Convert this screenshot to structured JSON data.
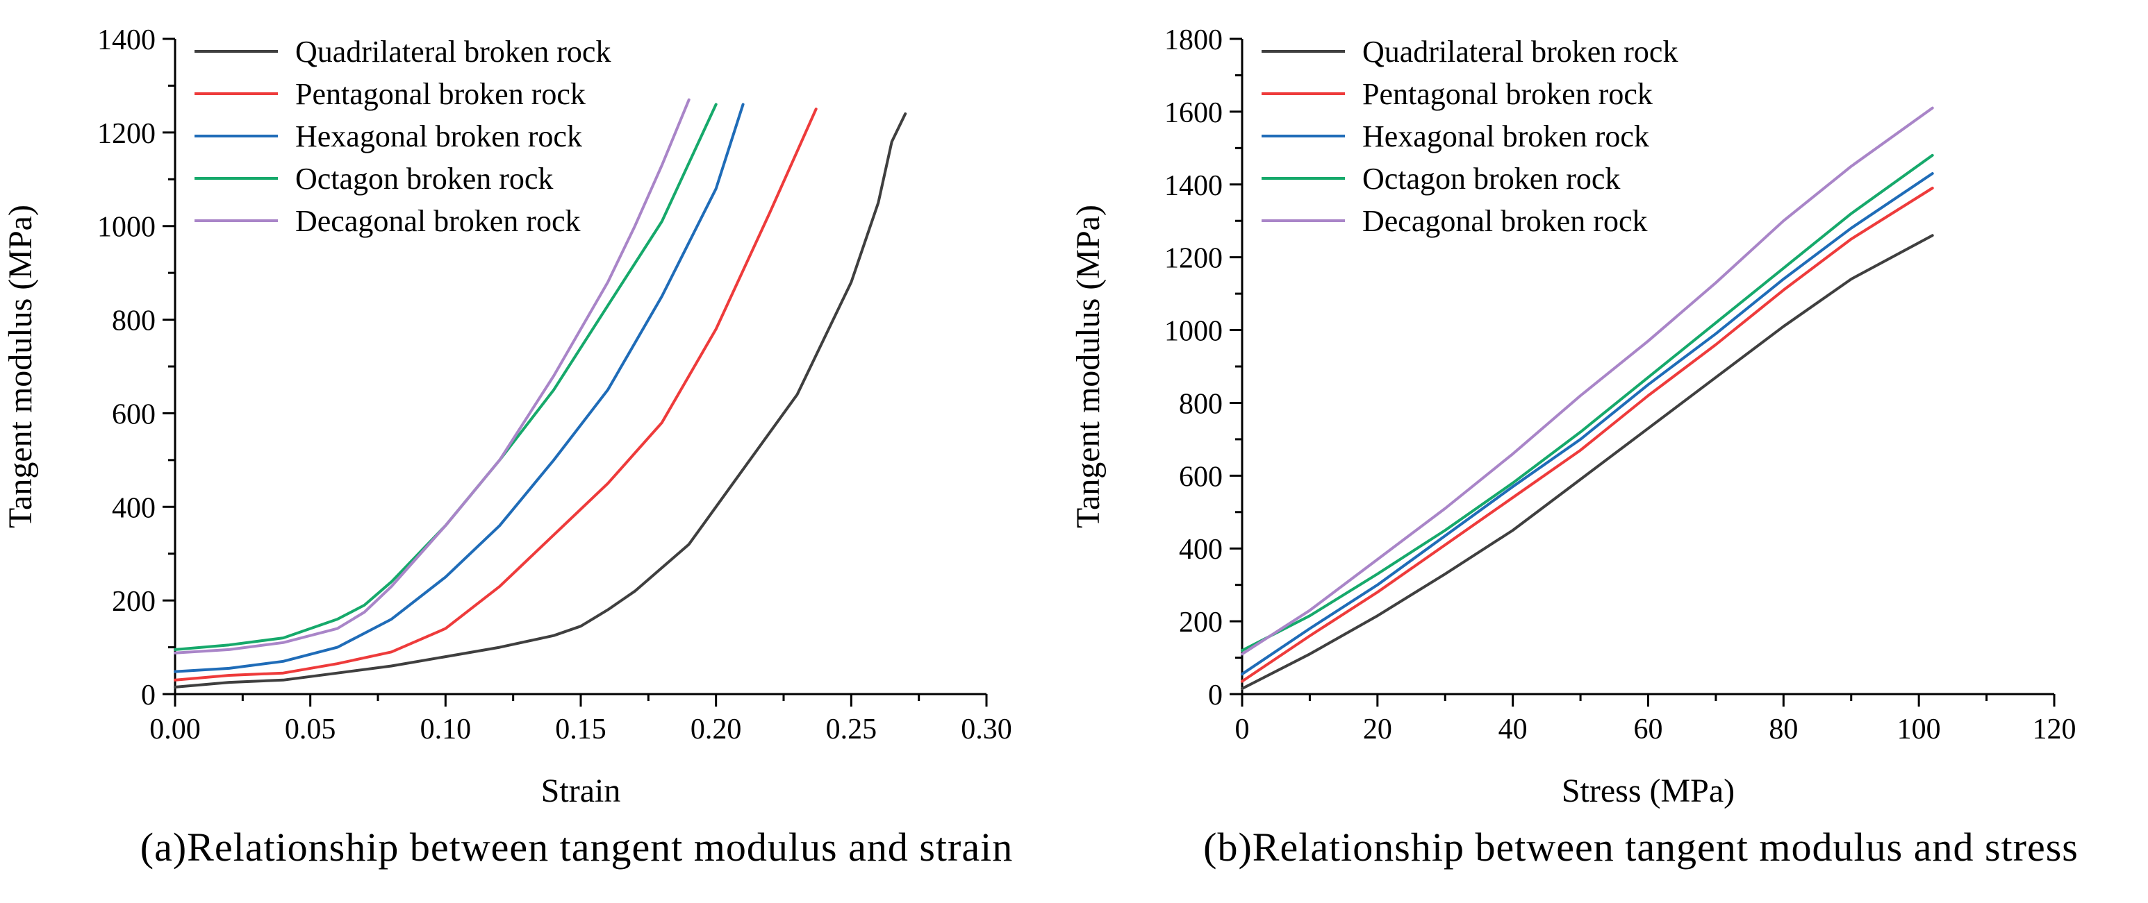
{
  "colors": {
    "quadrilateral": "#3f3f3f",
    "pentagonal": "#ee3b3b",
    "hexagonal": "#1f6cb8",
    "octagon": "#16a96b",
    "decagonal": "#a985c8"
  },
  "chart_data": [
    {
      "type": "line",
      "caption": "(a)Relationship between tangent modulus and strain",
      "xlabel": "Strain",
      "ylabel": "Tangent modulus (MPa)",
      "xlim": [
        0,
        0.3
      ],
      "ylim": [
        0,
        1400
      ],
      "xticks": [
        0,
        0.05,
        0.1,
        0.15,
        0.2,
        0.25,
        0.3
      ],
      "xtick_labels": [
        "0.00",
        "0.05",
        "0.10",
        "0.15",
        "0.20",
        "0.25",
        "0.30"
      ],
      "yticks": [
        0,
        200,
        400,
        600,
        800,
        1000,
        1200,
        1400
      ],
      "ytick_labels": [
        "0",
        "200",
        "400",
        "600",
        "800",
        "1000",
        "1200",
        "1400"
      ],
      "legend_position": "top-left",
      "series": [
        {
          "name": "Quadrilateral broken rock",
          "color_key": "quadrilateral",
          "x": [
            0,
            0.02,
            0.04,
            0.06,
            0.08,
            0.1,
            0.12,
            0.14,
            0.15,
            0.16,
            0.17,
            0.19,
            0.21,
            0.23,
            0.25,
            0.26,
            0.265,
            0.27
          ],
          "y": [
            15,
            25,
            30,
            45,
            60,
            80,
            100,
            125,
            145,
            180,
            220,
            320,
            480,
            640,
            880,
            1050,
            1180,
            1240
          ]
        },
        {
          "name": "Pentagonal broken rock",
          "color_key": "pentagonal",
          "x": [
            0,
            0.02,
            0.04,
            0.06,
            0.08,
            0.1,
            0.12,
            0.14,
            0.16,
            0.18,
            0.2,
            0.22,
            0.237
          ],
          "y": [
            30,
            40,
            45,
            65,
            90,
            140,
            230,
            340,
            450,
            580,
            780,
            1030,
            1250
          ]
        },
        {
          "name": "Hexagonal broken rock",
          "color_key": "hexagonal",
          "x": [
            0,
            0.02,
            0.04,
            0.06,
            0.08,
            0.1,
            0.12,
            0.14,
            0.16,
            0.18,
            0.2,
            0.21
          ],
          "y": [
            48,
            55,
            70,
            100,
            160,
            250,
            360,
            500,
            650,
            850,
            1080,
            1260
          ]
        },
        {
          "name": "Octagon broken rock",
          "color_key": "octagon",
          "x": [
            0,
            0.02,
            0.04,
            0.06,
            0.07,
            0.08,
            0.1,
            0.12,
            0.14,
            0.16,
            0.18,
            0.2
          ],
          "y": [
            95,
            105,
            120,
            160,
            190,
            240,
            360,
            500,
            650,
            830,
            1010,
            1260
          ]
        },
        {
          "name": "Decagonal broken rock",
          "color_key": "decagonal",
          "x": [
            0,
            0.02,
            0.04,
            0.06,
            0.07,
            0.08,
            0.1,
            0.12,
            0.14,
            0.16,
            0.17,
            0.18,
            0.19
          ],
          "y": [
            88,
            95,
            110,
            140,
            175,
            230,
            360,
            500,
            680,
            880,
            1000,
            1130,
            1270
          ]
        }
      ]
    },
    {
      "type": "line",
      "caption": "(b)Relationship between tangent modulus and stress",
      "xlabel": "Stress (MPa)",
      "ylabel": "Tangent modulus (MPa)",
      "xlim": [
        0,
        120
      ],
      "ylim": [
        0,
        1800
      ],
      "xticks": [
        0,
        20,
        40,
        60,
        80,
        100,
        120
      ],
      "xtick_labels": [
        "0",
        "20",
        "40",
        "60",
        "80",
        "100",
        "120"
      ],
      "yticks": [
        0,
        200,
        400,
        600,
        800,
        1000,
        1200,
        1400,
        1600,
        1800
      ],
      "ytick_labels": [
        "0",
        "200",
        "400",
        "600",
        "800",
        "1000",
        "1200",
        "1400",
        "1600",
        "1800"
      ],
      "legend_position": "top-left",
      "series": [
        {
          "name": "Quadrilateral broken rock",
          "color_key": "quadrilateral",
          "x": [
            0,
            10,
            20,
            30,
            40,
            50,
            60,
            70,
            80,
            90,
            102
          ],
          "y": [
            15,
            110,
            215,
            330,
            450,
            590,
            730,
            870,
            1010,
            1140,
            1260
          ]
        },
        {
          "name": "Pentagonal broken rock",
          "color_key": "pentagonal",
          "x": [
            0,
            10,
            20,
            30,
            40,
            50,
            60,
            70,
            80,
            90,
            102
          ],
          "y": [
            35,
            160,
            280,
            410,
            540,
            670,
            820,
            960,
            1110,
            1250,
            1390
          ]
        },
        {
          "name": "Hexagonal broken rock",
          "color_key": "hexagonal",
          "x": [
            0,
            10,
            20,
            30,
            40,
            50,
            60,
            70,
            80,
            90,
            102
          ],
          "y": [
            55,
            180,
            300,
            435,
            570,
            700,
            850,
            990,
            1140,
            1280,
            1430
          ]
        },
        {
          "name": "Octagon broken rock",
          "color_key": "octagon",
          "x": [
            0,
            10,
            20,
            30,
            40,
            50,
            60,
            70,
            80,
            90,
            102
          ],
          "y": [
            120,
            215,
            330,
            450,
            580,
            720,
            870,
            1020,
            1170,
            1320,
            1480
          ]
        },
        {
          "name": "Decagonal broken rock",
          "color_key": "decagonal",
          "x": [
            0,
            10,
            20,
            30,
            40,
            50,
            60,
            70,
            80,
            90,
            102
          ],
          "y": [
            110,
            230,
            370,
            510,
            660,
            820,
            970,
            1130,
            1300,
            1450,
            1610
          ]
        }
      ]
    }
  ]
}
